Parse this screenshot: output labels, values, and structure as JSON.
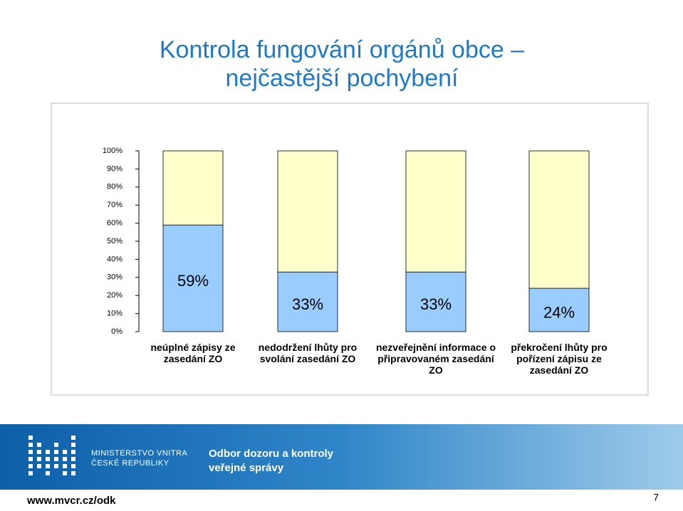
{
  "slide": {
    "title": [
      "Kontrola fungování orgánů obce –",
      "nejčastější pochybení"
    ],
    "ministry": [
      "MINISTERSTVO VNITRA",
      "ČESKÉ REPUBLIKY"
    ],
    "department": [
      "Odbor dozoru a kontroly",
      "veřejné správy"
    ],
    "url": "www.mvcr.cz/odk",
    "page": "7"
  },
  "chart_data": {
    "type": "stacked_bar",
    "categories": [
      "neúplné zápisy ze zasedání ZO",
      "nedodržení lhůty pro svolání zasedání ZO",
      "nezveřejnění informace o připravovaném zasedání ZO",
      "překročení lhůty pro pořízení zápisu ze zasedání ZO"
    ],
    "series": [
      {
        "color": "#99ccff",
        "values": [
          59,
          33,
          33,
          24
        ],
        "value_labels": [
          "59%",
          "33%",
          "33%",
          "24%"
        ]
      },
      {
        "color": "#ffffcc",
        "values": [
          41,
          67,
          67,
          76
        ]
      }
    ],
    "ylim": [
      0,
      100
    ],
    "yticks": [
      {
        "value": 0,
        "label": "0%"
      },
      {
        "value": 10,
        "label": "10%"
      },
      {
        "value": 20,
        "label": "20%"
      },
      {
        "value": 30,
        "label": "30%"
      },
      {
        "value": 40,
        "label": "40%"
      },
      {
        "value": 50,
        "label": "50%"
      },
      {
        "value": 60,
        "label": "60%"
      },
      {
        "value": 70,
        "label": "70%"
      },
      {
        "value": 80,
        "label": "80%"
      },
      {
        "value": 90,
        "label": "90%"
      },
      {
        "value": 100,
        "label": "100%"
      }
    ]
  }
}
